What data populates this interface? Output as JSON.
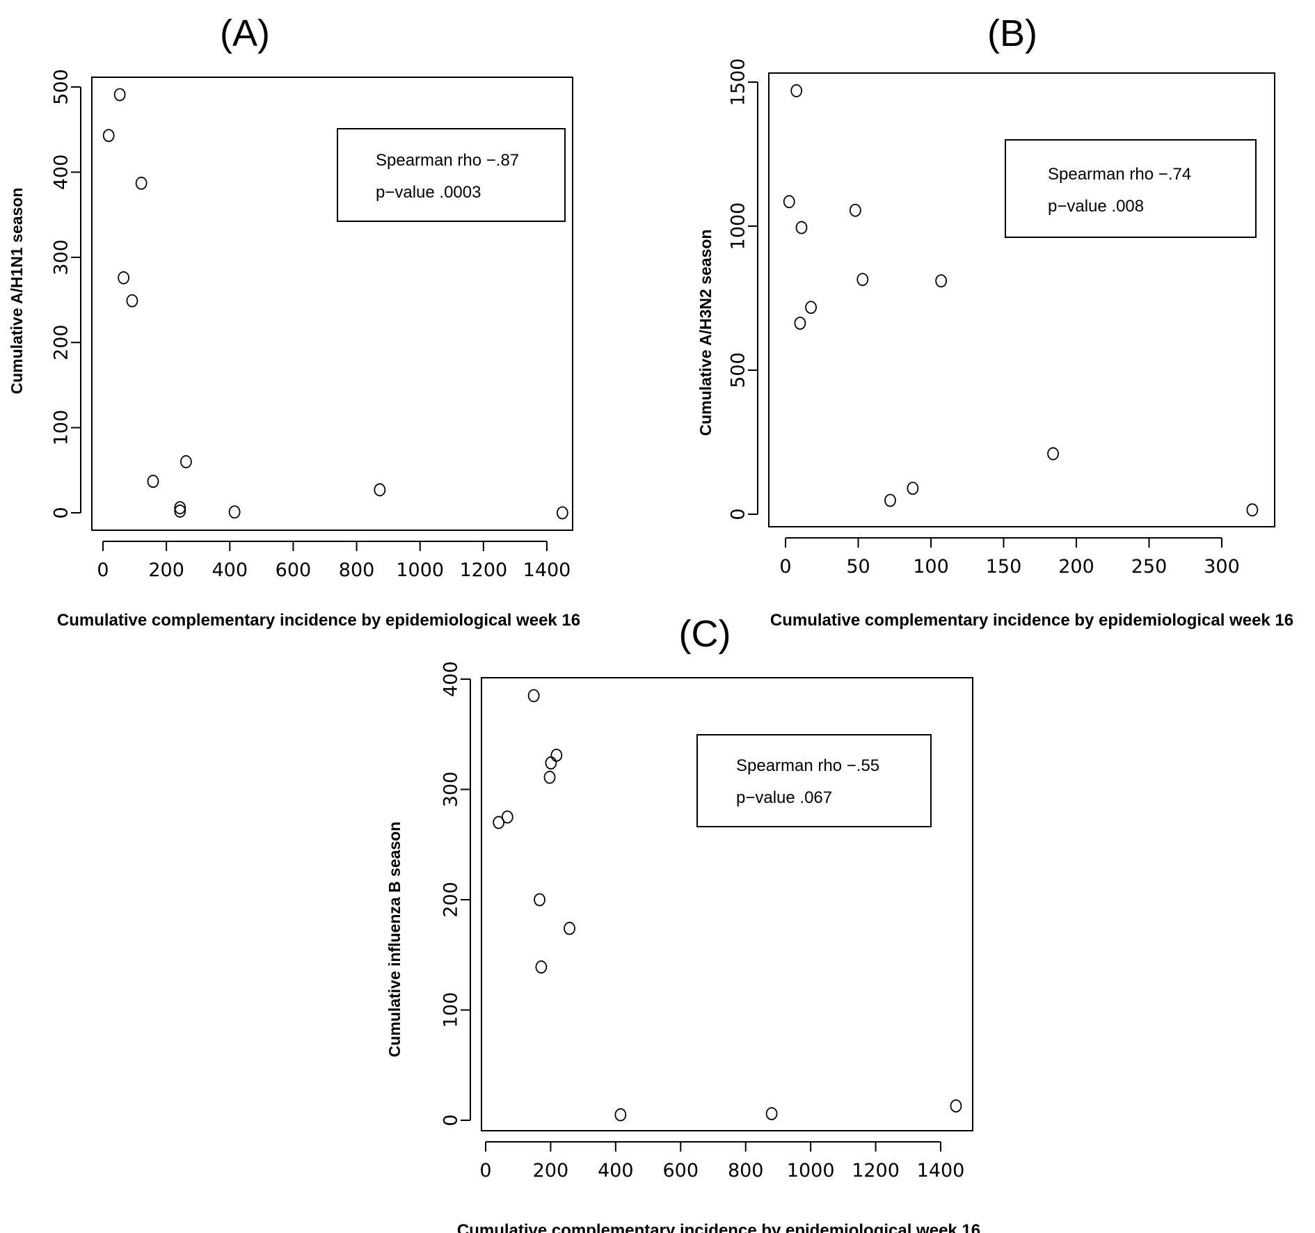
{
  "chart_data": [
    {
      "panel": "(A)",
      "type": "scatter",
      "xlabel": "Cumulative complementary incidence by epidemiological week 16",
      "ylabel": "Cumulative A/H1N1 season",
      "xlim": [
        0,
        1460
      ],
      "ylim": [
        0,
        500
      ],
      "xticks": [
        0,
        200,
        400,
        600,
        800,
        1000,
        1200,
        1400
      ],
      "yticks": [
        0,
        100,
        200,
        300,
        400,
        500
      ],
      "annotation": [
        "Spearman rho −.87",
        "p−value .0003"
      ],
      "points": [
        {
          "x": 18,
          "y": 443
        },
        {
          "x": 53,
          "y": 491
        },
        {
          "x": 121,
          "y": 387
        },
        {
          "x": 65,
          "y": 276
        },
        {
          "x": 92,
          "y": 249
        },
        {
          "x": 158,
          "y": 37
        },
        {
          "x": 262,
          "y": 60
        },
        {
          "x": 243,
          "y": 6
        },
        {
          "x": 243,
          "y": 2
        },
        {
          "x": 415,
          "y": 1
        },
        {
          "x": 873,
          "y": 27
        },
        {
          "x": 1449,
          "y": 0
        }
      ]
    },
    {
      "panel": "(B)",
      "type": "scatter",
      "xlabel": "Cumulative complementary incidence by epidemiological week 16",
      "ylabel": "Cumulative A/H3N2 season",
      "xlim": [
        0,
        325
      ],
      "ylim": [
        0,
        1500
      ],
      "xticks": [
        0,
        50,
        100,
        150,
        200,
        250,
        300
      ],
      "yticks": [
        0,
        500,
        1000,
        1500
      ],
      "annotation": [
        "Spearman rho −.74",
        "p−value .008"
      ],
      "points": [
        {
          "x": 7.5,
          "y": 1470
        },
        {
          "x": 2.5,
          "y": 1085
        },
        {
          "x": 11,
          "y": 995
        },
        {
          "x": 48,
          "y": 1055
        },
        {
          "x": 53,
          "y": 815
        },
        {
          "x": 107,
          "y": 810
        },
        {
          "x": 17.5,
          "y": 718
        },
        {
          "x": 10,
          "y": 663
        },
        {
          "x": 72,
          "y": 48
        },
        {
          "x": 87.5,
          "y": 90
        },
        {
          "x": 184,
          "y": 210
        },
        {
          "x": 321,
          "y": 15
        }
      ]
    },
    {
      "panel": "(C)",
      "type": "scatter",
      "xlabel": "Cumulative complementary incidence by epidemiological week 16",
      "ylabel": "Cumulative influenza B season",
      "xlim": [
        0,
        1460
      ],
      "ylim": [
        0,
        400
      ],
      "xticks": [
        0,
        200,
        400,
        600,
        800,
        1000,
        1200,
        1400
      ],
      "yticks": [
        0,
        100,
        200,
        300,
        400
      ],
      "annotation": [
        "Spearman rho −.55",
        "p−value .067"
      ],
      "points": [
        {
          "x": 148,
          "y": 385
        },
        {
          "x": 218,
          "y": 331
        },
        {
          "x": 201,
          "y": 324
        },
        {
          "x": 197,
          "y": 311
        },
        {
          "x": 40,
          "y": 270
        },
        {
          "x": 67,
          "y": 275
        },
        {
          "x": 166,
          "y": 200
        },
        {
          "x": 258,
          "y": 174
        },
        {
          "x": 171,
          "y": 139
        },
        {
          "x": 415,
          "y": 5
        },
        {
          "x": 880,
          "y": 6
        },
        {
          "x": 1447,
          "y": 13
        }
      ]
    }
  ]
}
